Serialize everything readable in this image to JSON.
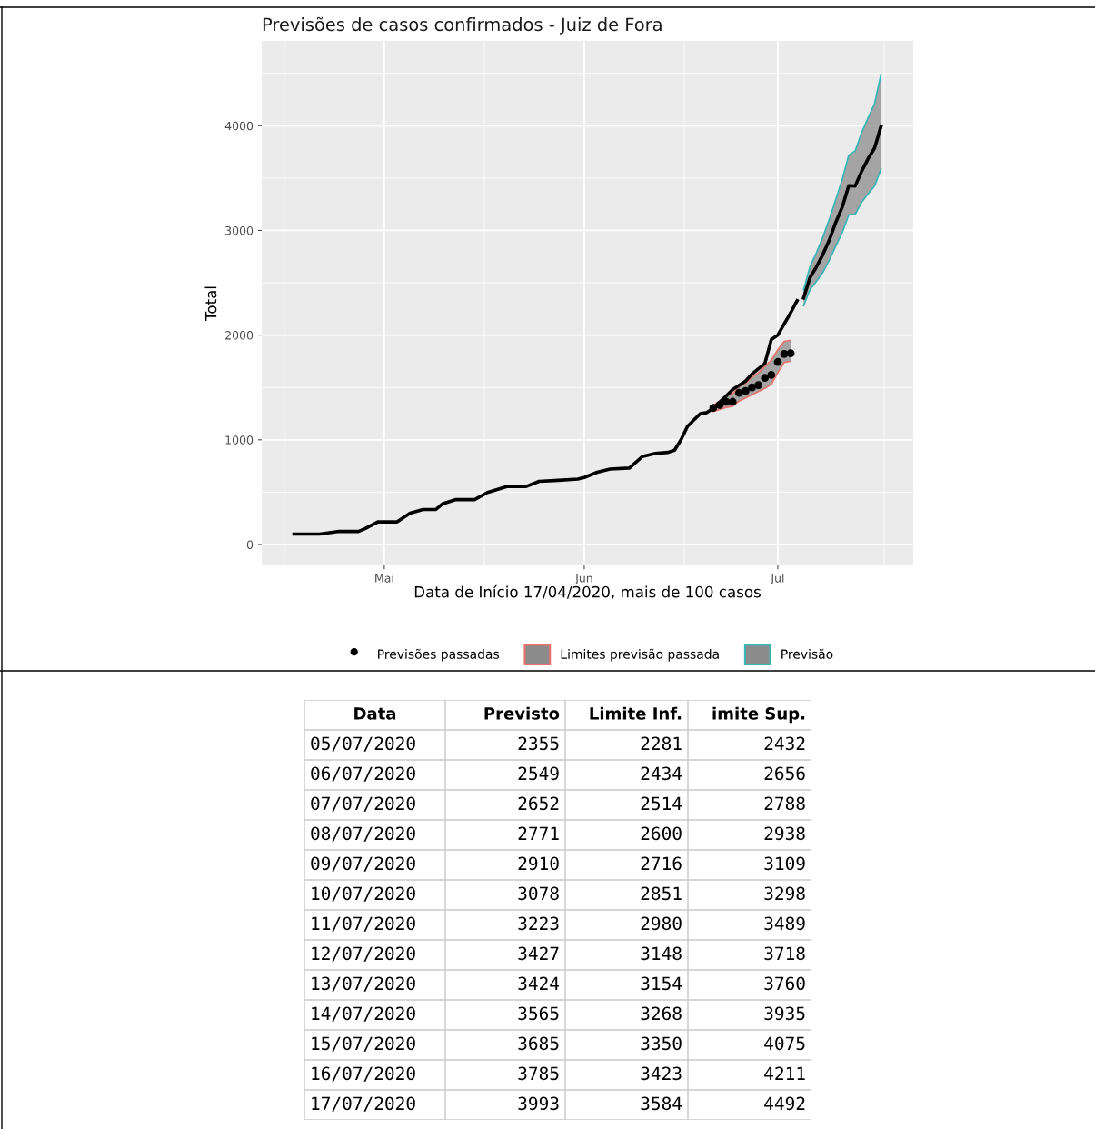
{
  "chart_data": [
    {
      "type": "line",
      "title": "Previsões de casos confirmados - Juiz de Fora",
      "xlabel": "Data de Início 17/04/2020, mais de 100 casos",
      "ylabel": "Total",
      "xlim": [
        "2020-04-12",
        "2020-07-22"
      ],
      "xticks": [
        {
          "value": "2020-05-01",
          "label": "Mai"
        },
        {
          "value": "2020-06-01",
          "label": "Jun"
        },
        {
          "value": "2020-07-01",
          "label": "Jul"
        }
      ],
      "ylim": [
        -200,
        4810
      ],
      "yticks": [
        0,
        1000,
        2000,
        3000,
        4000
      ],
      "grid": true,
      "legend": "bottom",
      "series": [
        {
          "type": "line",
          "color": "#000000",
          "x": [
            "2020-04-17",
            "2020-04-21",
            "2020-04-24",
            "2020-04-27",
            "2020-04-28",
            "2020-04-30",
            "2020-05-03",
            "2020-05-05",
            "2020-05-07",
            "2020-05-09",
            "2020-05-10",
            "2020-05-12",
            "2020-05-15",
            "2020-05-17",
            "2020-05-20",
            "2020-05-23",
            "2020-05-25",
            "2020-05-28",
            "2020-05-31",
            "2020-06-01",
            "2020-06-03",
            "2020-06-05",
            "2020-06-08",
            "2020-06-10",
            "2020-06-12",
            "2020-06-14",
            "2020-06-15",
            "2020-06-16",
            "2020-06-17",
            "2020-06-19",
            "2020-06-20",
            "2020-06-21",
            "2020-06-23",
            "2020-06-24",
            "2020-06-26",
            "2020-06-27",
            "2020-06-29",
            "2020-06-30",
            "2020-07-01",
            "2020-07-03",
            "2020-07-04"
          ],
          "values": [
            100,
            100,
            125,
            125,
            150,
            216,
            216,
            300,
            334,
            334,
            388,
            428,
            428,
            497,
            554,
            554,
            603,
            613,
            625,
            640,
            690,
            720,
            730,
            840,
            870,
            880,
            900,
            1000,
            1129,
            1250,
            1260,
            1300,
            1420,
            1480,
            1560,
            1629,
            1729,
            1957,
            2000,
            2214,
            2329
          ]
        },
        {
          "type": "line",
          "name": "Limites previsão passada",
          "color": "#e8736c",
          "x": [
            "2020-06-21",
            "2020-06-22",
            "2020-06-23",
            "2020-06-24",
            "2020-06-25",
            "2020-06-26",
            "2020-06-27",
            "2020-06-28",
            "2020-06-29",
            "2020-06-30",
            "2020-07-01",
            "2020-07-02",
            "2020-07-03"
          ],
          "values": [
            1330,
            1370,
            1420,
            1440,
            1510,
            1540,
            1600,
            1640,
            1700,
            1760,
            1860,
            1940,
            1950
          ]
        },
        {
          "type": "line",
          "color": "#e8736c",
          "x": [
            "2020-06-21",
            "2020-06-22",
            "2020-06-23",
            "2020-06-24",
            "2020-06-25",
            "2020-06-26",
            "2020-06-27",
            "2020-06-28",
            "2020-06-29",
            "2020-06-30",
            "2020-07-01",
            "2020-07-02",
            "2020-07-03"
          ],
          "values": [
            1270,
            1290,
            1310,
            1320,
            1370,
            1400,
            1430,
            1460,
            1490,
            1530,
            1640,
            1740,
            1750
          ]
        },
        {
          "type": "scatter",
          "name": "Previsões passadas",
          "color": "#000000",
          "x": [
            "2020-06-21",
            "2020-06-22",
            "2020-06-23",
            "2020-06-24",
            "2020-06-25",
            "2020-06-26",
            "2020-06-27",
            "2020-06-28",
            "2020-06-29",
            "2020-06-30",
            "2020-07-01",
            "2020-07-02",
            "2020-07-03"
          ],
          "values": [
            1306,
            1334,
            1363,
            1363,
            1449,
            1466,
            1500,
            1523,
            1591,
            1620,
            1743,
            1820,
            1826
          ],
          "lower": [
            1270,
            1290,
            1310,
            1320,
            1370,
            1400,
            1430,
            1460,
            1490,
            1530,
            1640,
            1740,
            1750
          ],
          "upper": [
            1330,
            1370,
            1420,
            1440,
            1510,
            1540,
            1600,
            1640,
            1700,
            1760,
            1860,
            1940,
            1950
          ]
        },
        {
          "type": "line",
          "name": "Previsão",
          "color": "#35b7b7",
          "x": [
            "2020-07-05",
            "2020-07-06",
            "2020-07-07",
            "2020-07-08",
            "2020-07-09",
            "2020-07-10",
            "2020-07-11",
            "2020-07-12",
            "2020-07-13",
            "2020-07-14",
            "2020-07-15",
            "2020-07-16",
            "2020-07-17"
          ],
          "values": [
            2432,
            2656,
            2788,
            2938,
            3109,
            3298,
            3489,
            3718,
            3760,
            3935,
            4075,
            4211,
            4492
          ]
        },
        {
          "type": "line",
          "color": "#35b7b7",
          "x": [
            "2020-07-05",
            "2020-07-06",
            "2020-07-07",
            "2020-07-08",
            "2020-07-09",
            "2020-07-10",
            "2020-07-11",
            "2020-07-12",
            "2020-07-13",
            "2020-07-14",
            "2020-07-15",
            "2020-07-16",
            "2020-07-17"
          ],
          "values": [
            2281,
            2434,
            2514,
            2600,
            2716,
            2851,
            2980,
            3148,
            3154,
            3268,
            3350,
            3423,
            3584
          ]
        },
        {
          "type": "line",
          "color": "#000000",
          "x": [
            "2020-07-05",
            "2020-07-06",
            "2020-07-07",
            "2020-07-08",
            "2020-07-09",
            "2020-07-10",
            "2020-07-11",
            "2020-07-12",
            "2020-07-13",
            "2020-07-14",
            "2020-07-15",
            "2020-07-16",
            "2020-07-17"
          ],
          "values": [
            2355,
            2549,
            2652,
            2771,
            2910,
            3078,
            3223,
            3427,
            3424,
            3565,
            3685,
            3785,
            3993
          ],
          "lower": [
            2281,
            2434,
            2514,
            2600,
            2716,
            2851,
            2980,
            3148,
            3154,
            3268,
            3350,
            3423,
            3584
          ],
          "upper": [
            2432,
            2656,
            2788,
            2938,
            3109,
            3298,
            3489,
            3718,
            3760,
            3935,
            4075,
            4211,
            4492
          ]
        }
      ]
    },
    {
      "type": "other",
      "categories": [
        "Data",
        "Previsto",
        "Limite Inf.",
        "imite Sup."
      ],
      "cell_labels": [
        [
          "05/07/2020",
          "2355",
          "2281",
          "2432"
        ],
        [
          "06/07/2020",
          "2549",
          "2434",
          "2656"
        ],
        [
          "07/07/2020",
          "2652",
          "2514",
          "2788"
        ],
        [
          "08/07/2020",
          "2771",
          "2600",
          "2938"
        ],
        [
          "09/07/2020",
          "2910",
          "2716",
          "3109"
        ],
        [
          "10/07/2020",
          "3078",
          "2851",
          "3298"
        ],
        [
          "11/07/2020",
          "3223",
          "2980",
          "3489"
        ],
        [
          "12/07/2020",
          "3427",
          "3148",
          "3718"
        ],
        [
          "13/07/2020",
          "3424",
          "3154",
          "3760"
        ],
        [
          "14/07/2020",
          "3565",
          "3268",
          "3935"
        ],
        [
          "15/07/2020",
          "3685",
          "3350",
          "4075"
        ],
        [
          "16/07/2020",
          "3785",
          "3423",
          "4211"
        ],
        [
          "17/07/2020",
          "3993",
          "3584",
          "4492"
        ]
      ]
    }
  ]
}
